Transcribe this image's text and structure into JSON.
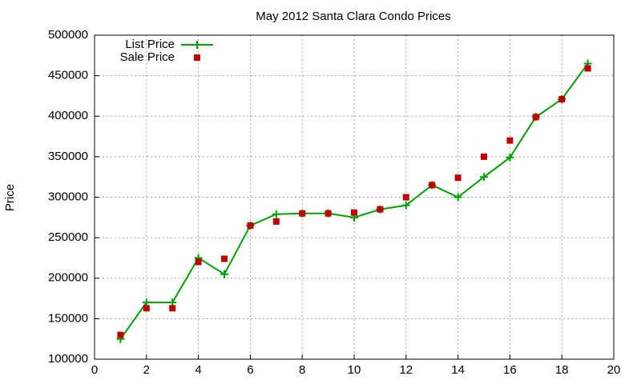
{
  "chart_data": {
    "type": "line",
    "title": "May 2012 Santa Clara Condo Prices",
    "y_label": "Price",
    "x": [
      1,
      2,
      3,
      4,
      5,
      6,
      7,
      8,
      9,
      10,
      11,
      12,
      13,
      14,
      15,
      16,
      17,
      18,
      19
    ],
    "series": [
      {
        "name": "List Price",
        "color": "#00a000",
        "style": "linespoints",
        "values": [
          125000,
          170000,
          170000,
          225000,
          205000,
          265000,
          279000,
          280000,
          280000,
          275000,
          285000,
          290000,
          315000,
          300000,
          325000,
          349000,
          399000,
          421000,
          465000
        ]
      },
      {
        "name": "Sale Price",
        "color": "#c00000",
        "style": "points",
        "values": [
          130000,
          163000,
          163000,
          220000,
          224000,
          265000,
          270000,
          280000,
          280000,
          281000,
          285000,
          300000,
          315000,
          324000,
          350000,
          370000,
          399000,
          421000,
          459000
        ]
      }
    ],
    "xlim": [
      0,
      20
    ],
    "xticks": [
      0,
      2,
      4,
      6,
      8,
      10,
      12,
      14,
      16,
      18,
      20
    ],
    "ylim": [
      100000,
      500000
    ],
    "yticks": [
      100000,
      150000,
      200000,
      250000,
      300000,
      350000,
      400000,
      450000,
      500000
    ],
    "grid": true,
    "legend": "top-left"
  }
}
